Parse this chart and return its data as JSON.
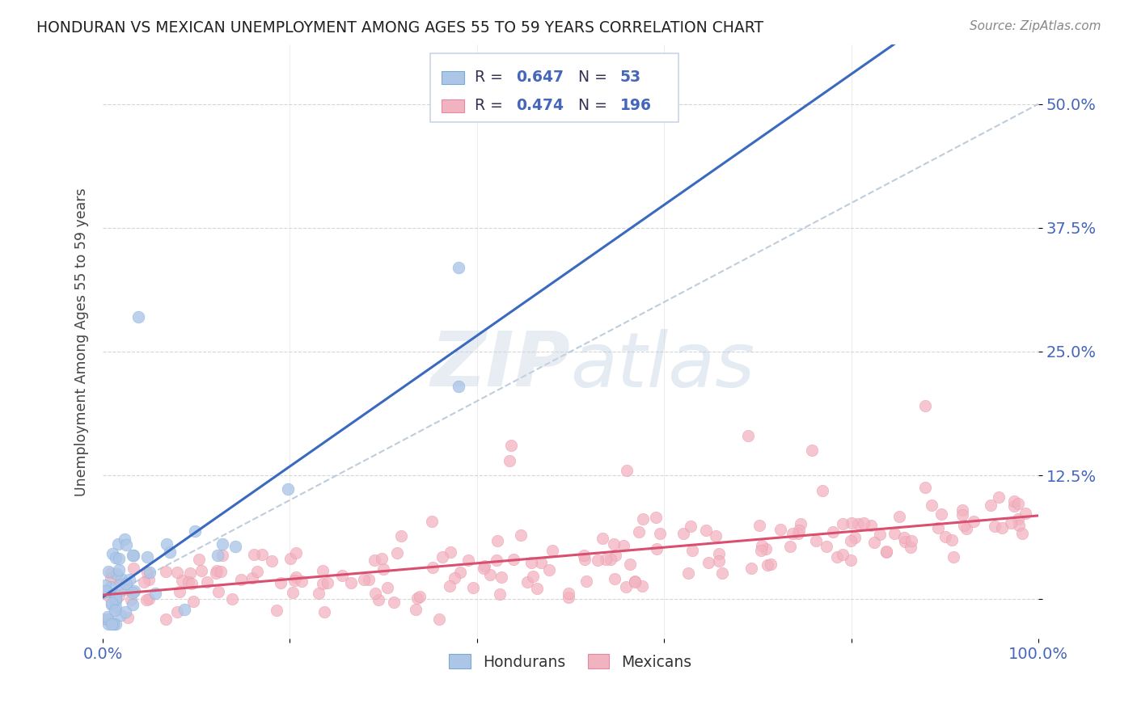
{
  "title": "HONDURAN VS MEXICAN UNEMPLOYMENT AMONG AGES 55 TO 59 YEARS CORRELATION CHART",
  "source": "Source: ZipAtlas.com",
  "ylabel": "Unemployment Among Ages 55 to 59 years",
  "xlim": [
    0.0,
    1.0
  ],
  "ylim": [
    -0.04,
    0.56
  ],
  "yticks": [
    0.0,
    0.125,
    0.25,
    0.375,
    0.5
  ],
  "ytick_labels": [
    "",
    "12.5%",
    "25.0%",
    "37.5%",
    "50.0%"
  ],
  "honduran_R": 0.647,
  "honduran_N": 53,
  "mexican_R": 0.474,
  "mexican_N": 196,
  "honduran_color": "#adc6e8",
  "honduran_edge_color": "#7aaad4",
  "honduran_line_color": "#3a6abf",
  "mexican_color": "#f2b3c0",
  "mexican_edge_color": "#e888a0",
  "mexican_line_color": "#d94f70",
  "diagonal_color": "#b8c8d8",
  "watermark_color": "#dce6f0",
  "background_color": "#ffffff",
  "title_color": "#222222",
  "tick_label_color": "#4466bb",
  "grid_color": "#cccccc",
  "legend_box_color": "#e8eef8",
  "legend_border_color": "#c8d4e8"
}
